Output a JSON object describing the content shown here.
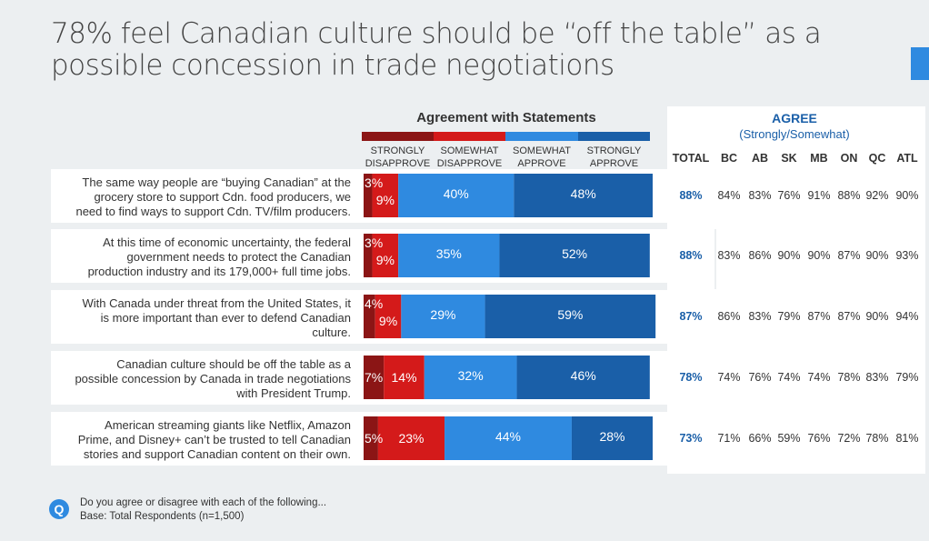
{
  "title": "78% feel Canadian culture should be “off the table” as a possible concession in trade negotiations",
  "footer": {
    "icon_letter": "Q",
    "question": "Do you agree or disagree with each of the following...",
    "base": "Base: Total Respondents (n=1,500)"
  },
  "agree": {
    "title": "AGREE",
    "subtitle": "(Strongly/Somewhat)"
  },
  "colors": {
    "strongly_disapprove": "#8b1515",
    "somewhat_disapprove": "#d41a1a",
    "somewhat_approve": "#2f8ae0",
    "strongly_approve": "#1a5fa8",
    "total_text": "#1a5fa8"
  },
  "chart_data": {
    "type": "bar",
    "orientation": "horizontal-stacked",
    "title": "Agreement with Statements",
    "legend": [
      "STRONGLY DISAPPROVE",
      "SOMEWHAT DISAPPROVE",
      "SOMEWHAT APPROVE",
      "STRONGLY APPROVE"
    ],
    "categories": [
      "The same way people are “buying Canadian” at the grocery store to support Cdn. food producers, we need to find ways to support Cdn. TV/film producers.",
      "At this time of economic uncertainty, the federal government needs to protect the Canadian production industry and its 179,000+ full time jobs.",
      "With Canada under threat from the United States, it is more important than ever to defend Canadian culture.",
      "Canadian culture should be off the table as a possible concession by Canada in trade negotiations with President Trump.",
      "American streaming giants like Netflix, Amazon Prime, and Disney+ can’t be trusted to tell Canadian stories and support Canadian content on their own."
    ],
    "series": [
      {
        "name": "STRONGLY DISAPPROVE",
        "values": [
          3,
          3,
          4,
          7,
          5
        ]
      },
      {
        "name": "SOMEWHAT DISAPPROVE",
        "values": [
          9,
          9,
          9,
          14,
          23
        ]
      },
      {
        "name": "SOMEWHAT APPROVE",
        "values": [
          40,
          35,
          29,
          32,
          44
        ]
      },
      {
        "name": "STRONGLY APPROVE",
        "values": [
          48,
          52,
          59,
          46,
          28
        ]
      }
    ],
    "table": {
      "columns": [
        "TOTAL",
        "BC",
        "AB",
        "SK",
        "MB",
        "ON",
        "QC",
        "ATL"
      ],
      "rows": [
        [
          "88%",
          "84%",
          "83%",
          "76%",
          "91%",
          "88%",
          "92%",
          "90%"
        ],
        [
          "88%",
          "83%",
          "86%",
          "90%",
          "90%",
          "87%",
          "90%",
          "93%"
        ],
        [
          "87%",
          "86%",
          "83%",
          "79%",
          "87%",
          "87%",
          "90%",
          "94%"
        ],
        [
          "78%",
          "74%",
          "76%",
          "74%",
          "74%",
          "78%",
          "83%",
          "79%"
        ],
        [
          "73%",
          "71%",
          "66%",
          "59%",
          "76%",
          "72%",
          "78%",
          "81%"
        ]
      ]
    }
  }
}
